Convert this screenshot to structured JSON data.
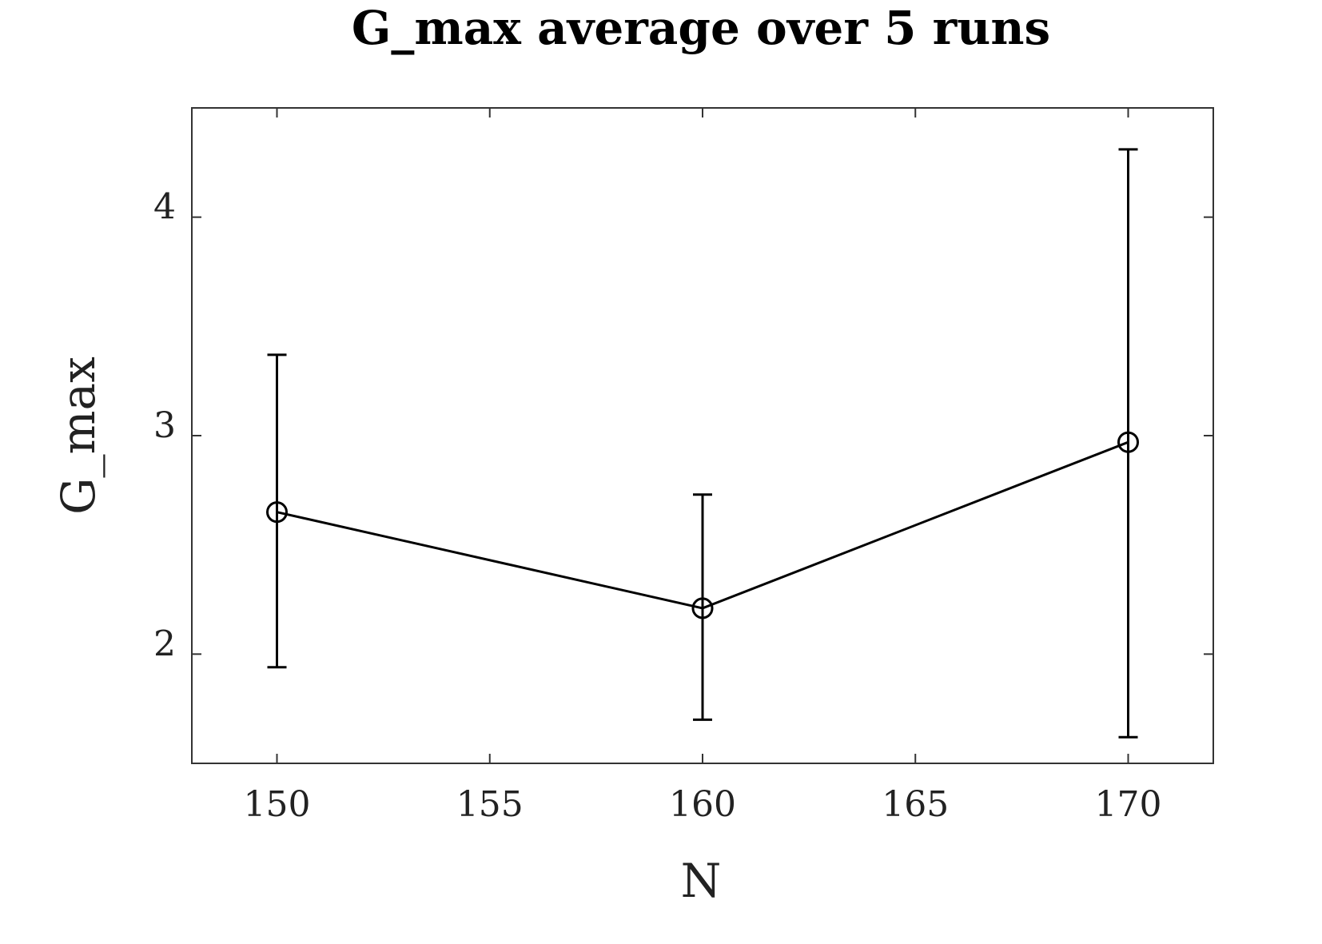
{
  "chart_data": {
    "type": "line",
    "title": "G_max average over 5 runs",
    "xlabel": "N",
    "ylabel": "G_max",
    "xlim": [
      148,
      172
    ],
    "ylim": [
      1.5,
      4.5
    ],
    "xticks": [
      150,
      155,
      160,
      165,
      170
    ],
    "yticks": [
      2,
      3,
      4
    ],
    "grid": false,
    "series": [
      {
        "x": [
          150,
          160,
          170
        ],
        "y": [
          2.65,
          2.21,
          2.97
        ],
        "yerr_low": [
          1.94,
          1.7,
          1.62
        ],
        "yerr_high": [
          3.37,
          2.73,
          4.31
        ],
        "marker": "circle",
        "color": "#000000"
      }
    ]
  }
}
